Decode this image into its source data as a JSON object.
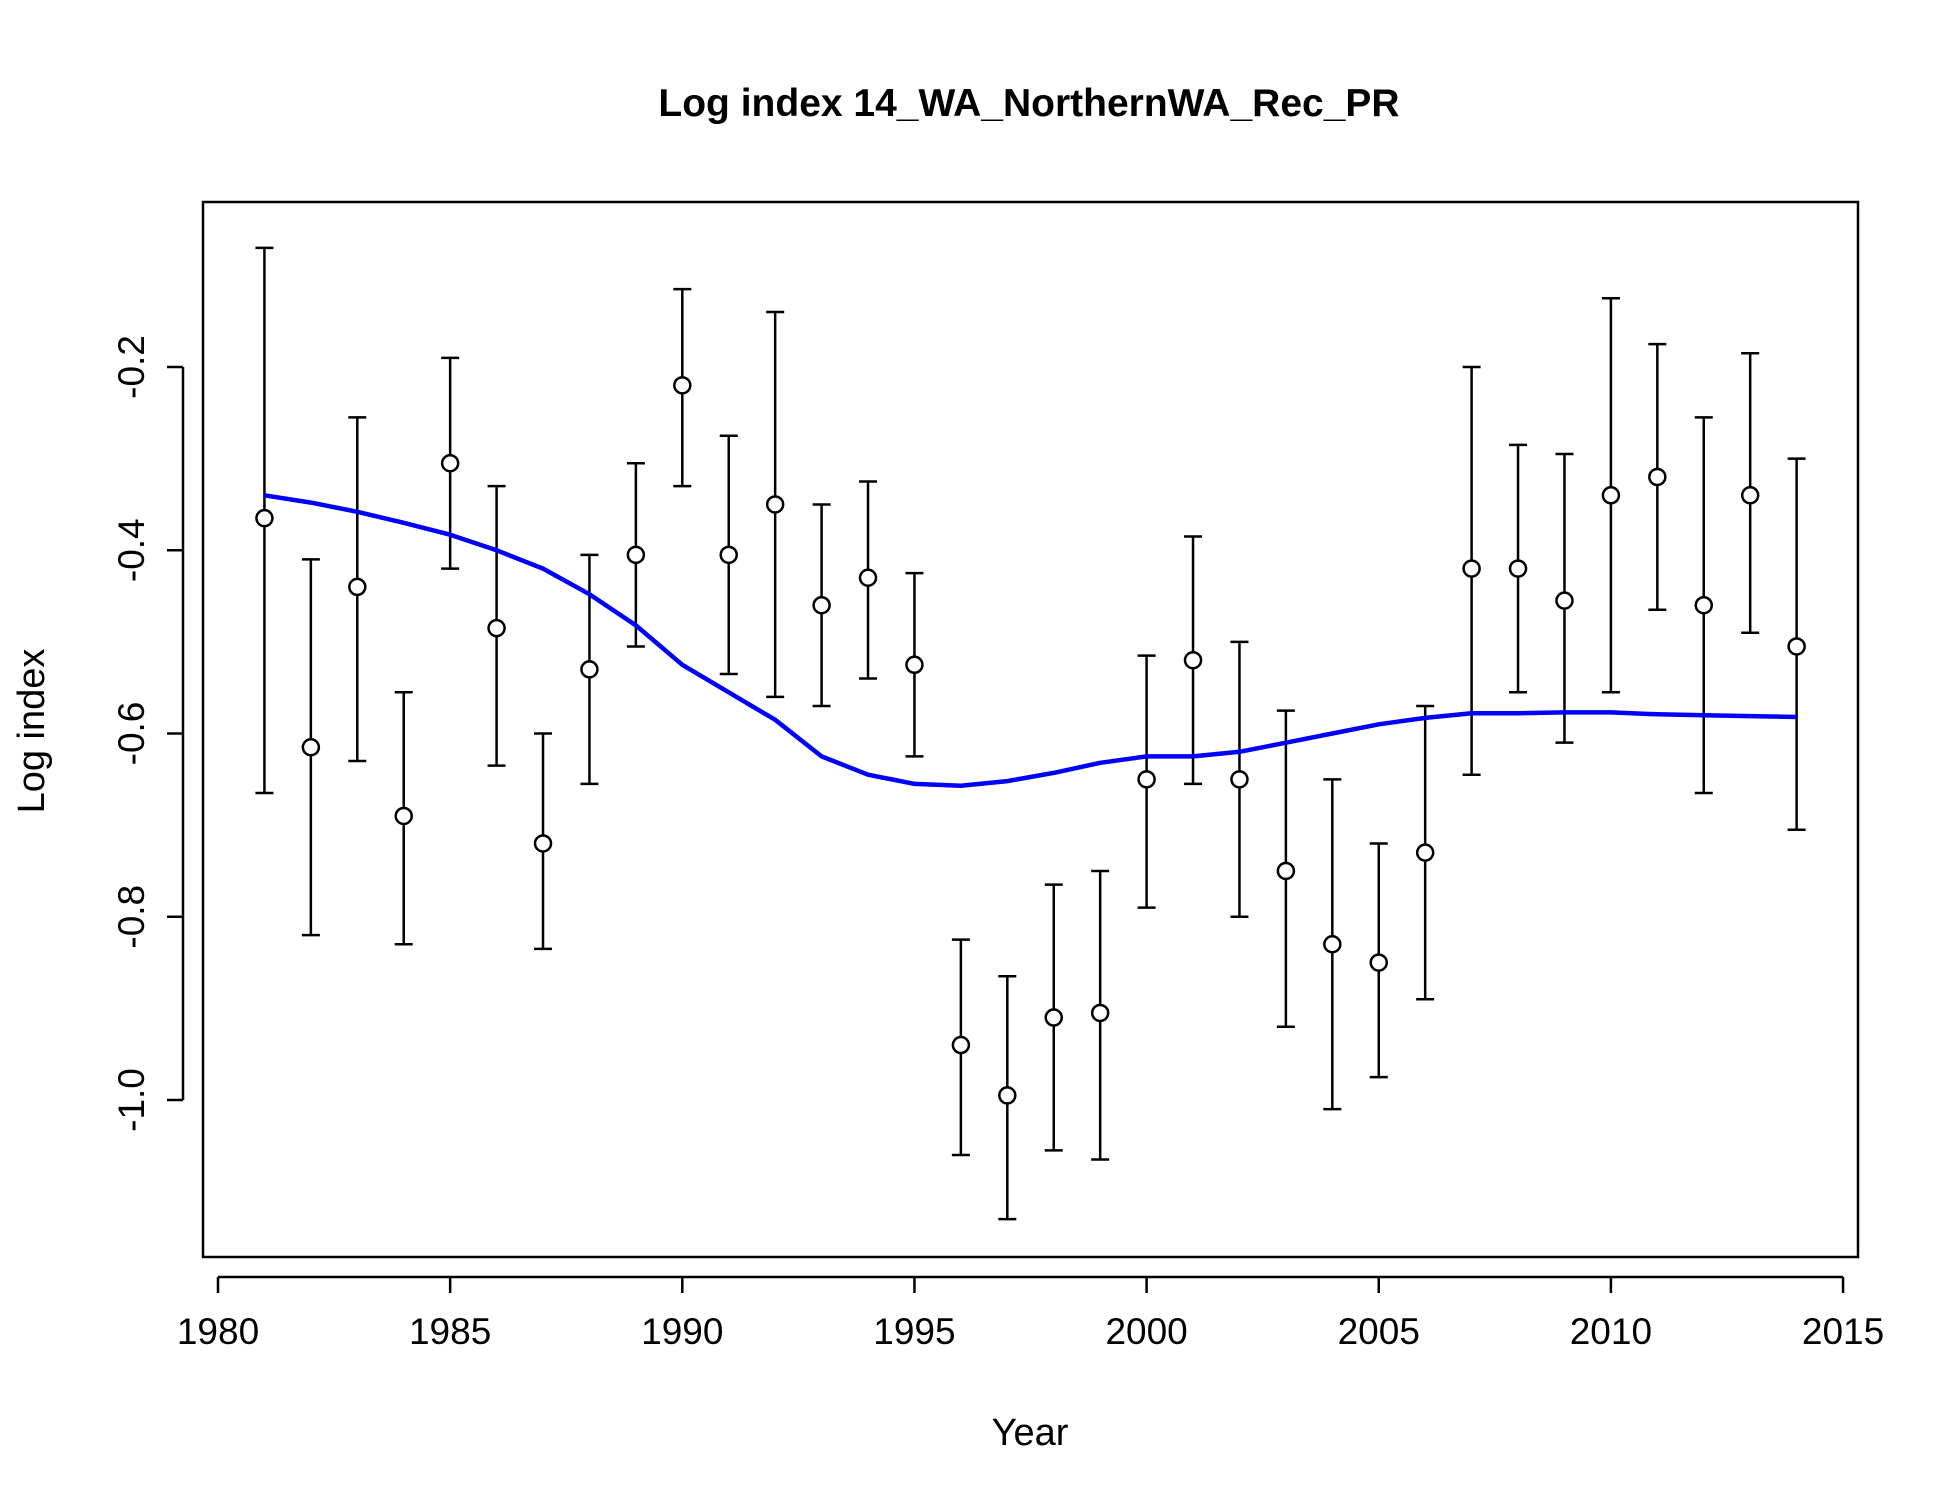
{
  "chart_data": {
    "type": "scatter",
    "title": "Log index 14_WA_NorthernWA_Rec_PR",
    "xlabel": "Year",
    "ylabel": "Log index",
    "xlim": [
      1980,
      2015
    ],
    "ylim": [
      -1.0,
      -0.2
    ],
    "xticks": [
      1980,
      1985,
      1990,
      1995,
      2000,
      2005,
      2010,
      2015
    ],
    "yticks": [
      -1.0,
      -0.8,
      -0.6,
      -0.4,
      -0.2
    ],
    "ytick_labels": [
      "-1.0",
      "-0.8",
      "-0.6",
      "-0.4",
      "-0.2"
    ],
    "grid": false,
    "series": [
      {
        "kind": "points-with-errorbars",
        "color": "#000000",
        "x": [
          1981,
          1982,
          1983,
          1984,
          1985,
          1986,
          1987,
          1988,
          1989,
          1990,
          1991,
          1992,
          1993,
          1994,
          1995,
          1996,
          1997,
          1998,
          1999,
          2000,
          2001,
          2002,
          2003,
          2004,
          2005,
          2006,
          2007,
          2008,
          2009,
          2010,
          2011,
          2012,
          2013,
          2014
        ],
        "y": [
          -0.365,
          -0.615,
          -0.44,
          -0.69,
          -0.305,
          -0.485,
          -0.72,
          -0.53,
          -0.405,
          -0.22,
          -0.405,
          -0.35,
          -0.46,
          -0.43,
          -0.525,
          -0.94,
          -0.995,
          -0.91,
          -0.905,
          -0.65,
          -0.52,
          -0.65,
          -0.75,
          -0.83,
          -0.85,
          -0.73,
          -0.42,
          -0.42,
          -0.455,
          -0.34,
          -0.32,
          -0.46,
          -0.34,
          -0.505
        ],
        "lower": [
          -0.665,
          -0.82,
          -0.63,
          -0.83,
          -0.42,
          -0.635,
          -0.835,
          -0.655,
          -0.505,
          -0.33,
          -0.535,
          -0.56,
          -0.57,
          -0.54,
          -0.625,
          -1.06,
          -1.13,
          -1.055,
          -1.065,
          -0.79,
          -0.655,
          -0.8,
          -0.92,
          -1.01,
          -0.975,
          -0.89,
          -0.645,
          -0.555,
          -0.61,
          -0.555,
          -0.465,
          -0.665,
          -0.49,
          -0.705
        ],
        "upper": [
          -0.07,
          -0.41,
          -0.255,
          -0.555,
          -0.19,
          -0.33,
          -0.6,
          -0.405,
          -0.305,
          -0.115,
          -0.275,
          -0.14,
          -0.35,
          -0.325,
          -0.425,
          -0.825,
          -0.865,
          -0.765,
          -0.75,
          -0.515,
          -0.385,
          -0.5,
          -0.575,
          -0.65,
          -0.72,
          -0.57,
          -0.2,
          -0.285,
          -0.295,
          -0.125,
          -0.175,
          -0.255,
          -0.185,
          -0.3
        ]
      },
      {
        "kind": "line",
        "color": "#0000ff",
        "x": [
          1981,
          1982,
          1983,
          1984,
          1985,
          1986,
          1987,
          1988,
          1989,
          1990,
          1991,
          1992,
          1993,
          1994,
          1995,
          1996,
          1997,
          1998,
          1999,
          2000,
          2001,
          2002,
          2003,
          2004,
          2005,
          2006,
          2007,
          2008,
          2009,
          2010,
          2011,
          2012,
          2013,
          2014
        ],
        "y": [
          -0.34,
          -0.348,
          -0.358,
          -0.37,
          -0.383,
          -0.4,
          -0.42,
          -0.448,
          -0.482,
          -0.525,
          -0.555,
          -0.585,
          -0.625,
          -0.645,
          -0.655,
          -0.657,
          -0.652,
          -0.643,
          -0.632,
          -0.625,
          -0.625,
          -0.62,
          -0.61,
          -0.6,
          -0.59,
          -0.583,
          -0.578,
          -0.578,
          -0.577,
          -0.577,
          -0.579,
          -0.58,
          -0.581,
          -0.582
        ]
      }
    ]
  }
}
